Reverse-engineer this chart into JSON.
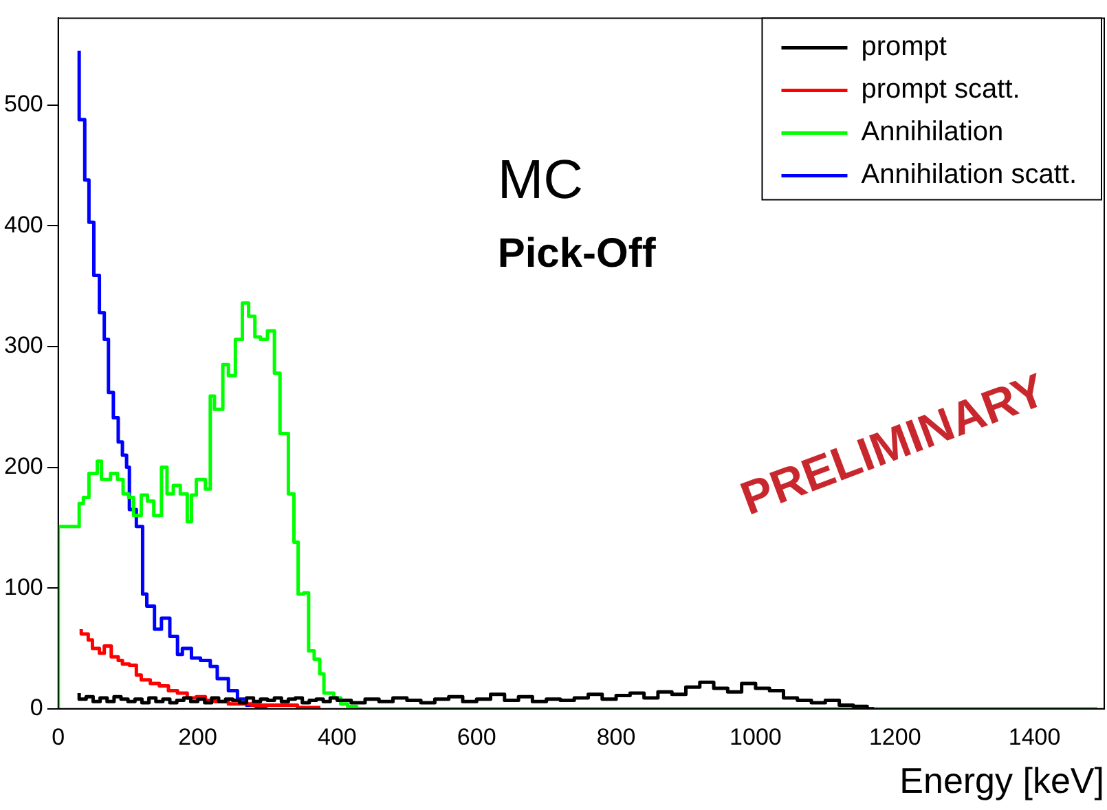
{
  "chart_data": {
    "type": "step",
    "xlabel": "Energy [keV]",
    "annotations": [
      "MC",
      "Pick-Off",
      "PRELIMINARY"
    ],
    "xlim": [
      0,
      1500
    ],
    "ylim": [
      0,
      572
    ],
    "xticks": [
      0,
      200,
      400,
      600,
      800,
      1000,
      1200,
      1400
    ],
    "yticks": [
      0,
      100,
      200,
      300,
      400,
      500
    ],
    "grid": false,
    "legend": "top right",
    "line_style": "solid",
    "marker": "none",
    "series": [
      {
        "name": "prompt",
        "color": "#000000",
        "x": [
          30,
          40,
          50,
          60,
          70,
          80,
          90,
          100,
          110,
          120,
          130,
          140,
          150,
          160,
          170,
          180,
          190,
          200,
          210,
          220,
          230,
          240,
          250,
          260,
          270,
          280,
          290,
          300,
          310,
          320,
          330,
          340,
          350,
          360,
          370,
          380,
          390,
          400,
          420,
          440,
          460,
          480,
          500,
          520,
          540,
          560,
          580,
          600,
          620,
          640,
          660,
          680,
          700,
          720,
          740,
          760,
          780,
          800,
          820,
          840,
          860,
          880,
          900,
          920,
          940,
          960,
          980,
          1000,
          1020,
          1040,
          1060,
          1080,
          1100,
          1120,
          1140,
          1160,
          1170
        ],
        "values": [
          13,
          8,
          10,
          6,
          9,
          6,
          10,
          8,
          6,
          8,
          5,
          9,
          6,
          8,
          5,
          7,
          9,
          6,
          8,
          5,
          9,
          6,
          8,
          7,
          5,
          9,
          6,
          8,
          7,
          9,
          6,
          8,
          9,
          5,
          7,
          8,
          6,
          9,
          7,
          5,
          8,
          6,
          9,
          7,
          5,
          8,
          10,
          6,
          8,
          12,
          7,
          10,
          6,
          8,
          7,
          9,
          12,
          8,
          11,
          13,
          9,
          14,
          12,
          18,
          22,
          17,
          14,
          21,
          17,
          15,
          9,
          7,
          5,
          7,
          3,
          2,
          0
        ]
      },
      {
        "name": "prompt scatt.",
        "color": "#ff0000",
        "x": [
          33,
          43,
          49,
          59,
          66,
          76,
          86,
          92,
          102,
          112,
          119,
          132,
          145,
          158,
          171,
          185,
          198,
          211,
          224,
          244,
          277,
          310,
          343,
          376
        ],
        "values": [
          66,
          62,
          57,
          50,
          46,
          52,
          43,
          40,
          37,
          36,
          28,
          24,
          21,
          19,
          15,
          13,
          9,
          10,
          7,
          6,
          4,
          3,
          3,
          1
        ]
      },
      {
        "name": "Annihilation",
        "color": "#00ff00",
        "x": [
          0,
          30,
          36,
          44,
          56,
          62,
          75,
          85,
          93,
          101,
          108,
          119,
          128,
          137,
          148,
          156,
          165,
          175,
          185,
          191,
          198,
          211,
          218,
          224,
          236,
          244,
          254,
          264,
          273,
          282,
          290,
          300,
          310,
          318,
          330,
          338,
          344,
          352,
          359,
          367,
          375,
          381,
          395,
          405,
          415,
          428,
          448,
          1490
        ],
        "values": [
          0,
          151,
          170,
          175,
          195,
          205,
          190,
          195,
          190,
          178,
          175,
          160,
          177,
          172,
          160,
          200,
          178,
          185,
          178,
          155,
          177,
          190,
          182,
          259,
          248,
          285,
          276,
          306,
          336,
          325,
          308,
          306,
          313,
          278,
          228,
          178,
          138,
          95,
          96,
          48,
          41,
          29,
          13,
          9,
          4,
          2,
          0,
          0
        ]
      },
      {
        "name": "Annihilation scatt.",
        "color": "#0000ff",
        "x": [
          30,
          38,
          44,
          51,
          59,
          66,
          72,
          79,
          86,
          92,
          98,
          102,
          112,
          121,
          127,
          138,
          148,
          160,
          171,
          178,
          191,
          204,
          218,
          228,
          244,
          257,
          270,
          284,
          300
        ],
        "values": [
          545,
          488,
          438,
          403,
          359,
          328,
          306,
          262,
          241,
          221,
          210,
          200,
          165,
          151,
          95,
          85,
          66,
          75,
          60,
          45,
          50,
          42,
          40,
          35,
          25,
          15,
          8,
          3,
          0
        ]
      }
    ]
  }
}
